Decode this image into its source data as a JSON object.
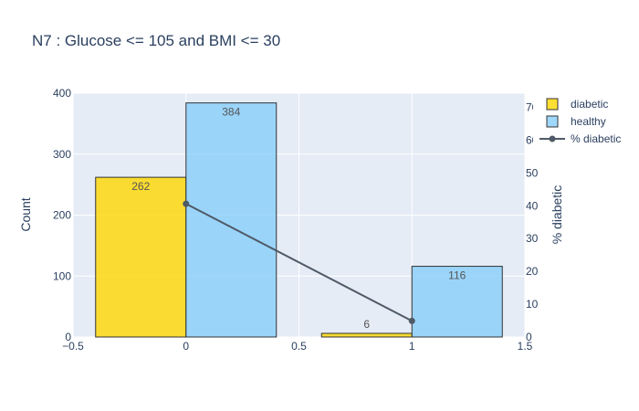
{
  "chart_data": {
    "type": "bar",
    "title": "N7 : Glucose <= 105 and BMI <= 30",
    "xlabel": "",
    "ylabel": "Count",
    "y2label": "% diabetic",
    "x_ticks": [
      "−0.5",
      "0",
      "0.5",
      "1",
      "1.5"
    ],
    "x_tick_values": [
      -0.5,
      0,
      0.5,
      1,
      1.5
    ],
    "xlim": [
      -0.5,
      1.5
    ],
    "y_ticks": [
      "0",
      "100",
      "200",
      "300",
      "400"
    ],
    "y_tick_values": [
      0,
      100,
      200,
      300,
      400
    ],
    "ylim": [
      0,
      400
    ],
    "y2_ticks": [
      "0",
      "10",
      "20",
      "30",
      "40",
      "50",
      "60",
      "70"
    ],
    "y2_tick_values": [
      0,
      10,
      20,
      30,
      40,
      50,
      60,
      70
    ],
    "y2lim": [
      0,
      74.3
    ],
    "bar_width": 0.4,
    "grid": true,
    "legend_position": "top-right",
    "series": [
      {
        "name": "diabetic",
        "type": "bar",
        "color": "#FFD700",
        "x": [
          -0.2,
          0.8
        ],
        "values": [
          262,
          6
        ],
        "labels": [
          "262",
          "6"
        ]
      },
      {
        "name": "healthy",
        "type": "bar",
        "color": "#87CEFA",
        "x": [
          0.2,
          1.2
        ],
        "values": [
          384,
          116
        ],
        "labels": [
          "384",
          "116"
        ]
      },
      {
        "name": "% diabetic",
        "type": "line",
        "axis": "y2",
        "color": "#4F5A67",
        "x": [
          0,
          1
        ],
        "values": [
          40.6,
          4.9
        ]
      }
    ]
  }
}
